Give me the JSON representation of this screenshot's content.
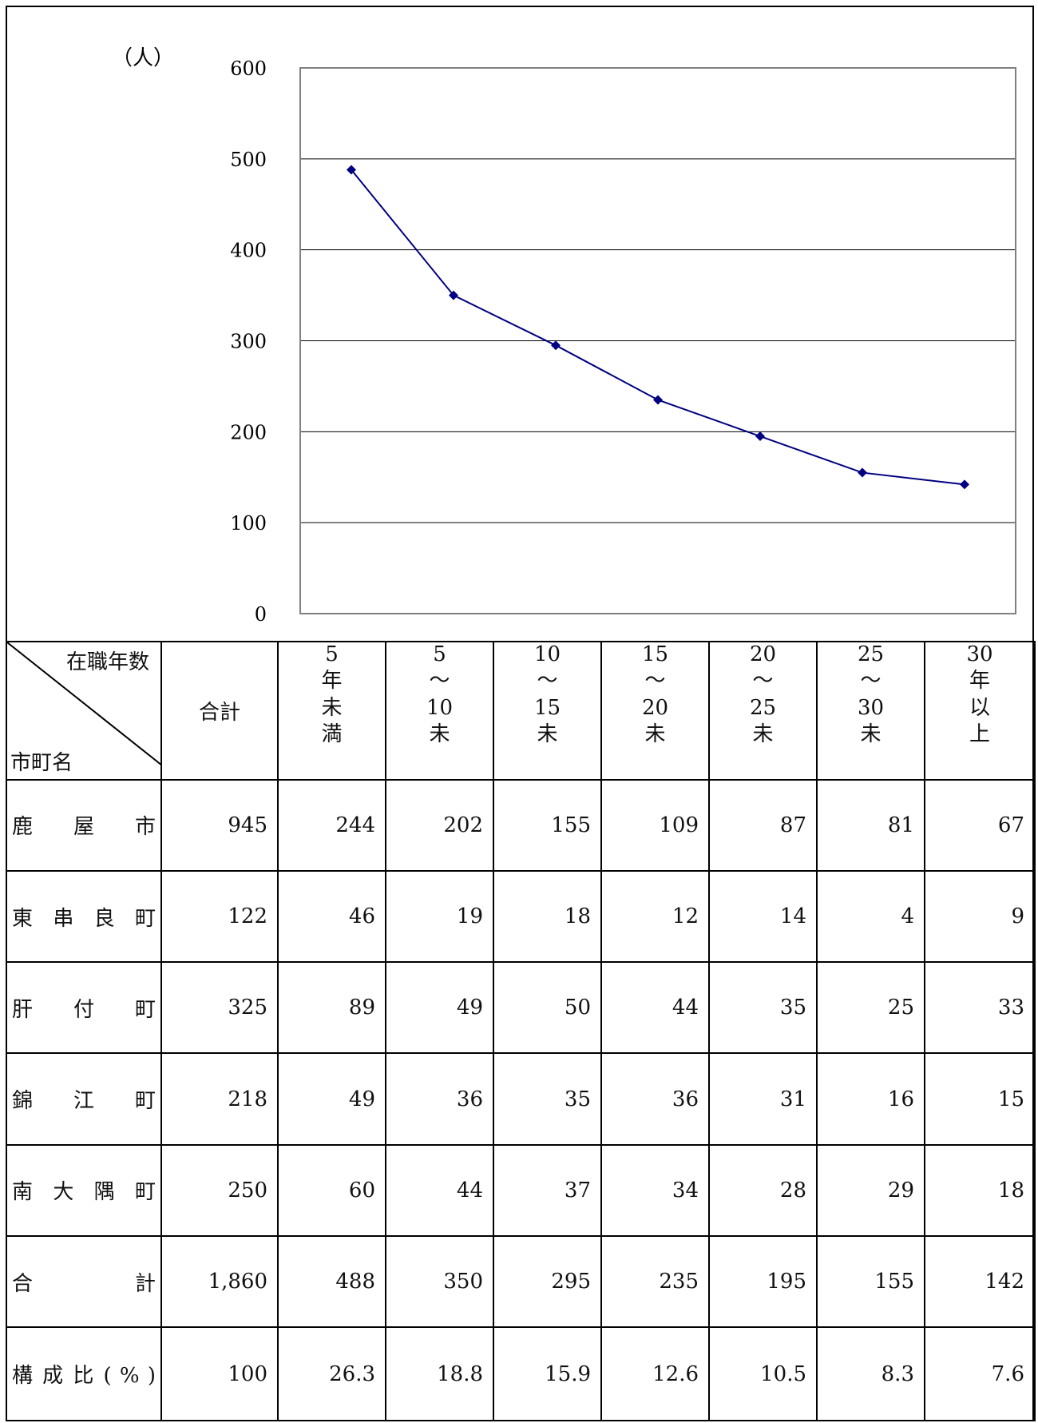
{
  "chart_data": {
    "type": "line",
    "ylabel": "（人）",
    "ylim": [
      0,
      600
    ],
    "yticks": [
      "0",
      "100",
      "200",
      "300",
      "400",
      "500",
      "600"
    ],
    "grid": true,
    "line_color": "#000080",
    "categories": [
      "5年未満",
      "5〜10未",
      "10〜15未",
      "15〜20未",
      "20〜25未",
      "25〜30未",
      "30年以上"
    ],
    "values": [
      488,
      350,
      295,
      235,
      195,
      155,
      142
    ]
  },
  "table": {
    "corner_top": "在職年数",
    "corner_bottom": "市町名",
    "total_header": "合計",
    "col_headers": [
      [
        "5",
        "年",
        "未",
        "満"
      ],
      [
        "5",
        "〜",
        "10",
        "未"
      ],
      [
        "10",
        "〜",
        "15",
        "未"
      ],
      [
        "15",
        "〜",
        "20",
        "未"
      ],
      [
        "20",
        "〜",
        "25",
        "未"
      ],
      [
        "25",
        "〜",
        "30",
        "未"
      ],
      [
        "30",
        "年",
        "以",
        "上"
      ]
    ],
    "rows": [
      {
        "name": [
          "鹿",
          "屋",
          "市"
        ],
        "total": "945",
        "cells": [
          "244",
          "202",
          "155",
          "109",
          "87",
          "81",
          "67"
        ]
      },
      {
        "name": [
          "東",
          "串",
          "良",
          "町"
        ],
        "total": "122",
        "cells": [
          "46",
          "19",
          "18",
          "12",
          "14",
          "4",
          "9"
        ]
      },
      {
        "name": [
          "肝",
          "付",
          "町"
        ],
        "total": "325",
        "cells": [
          "89",
          "49",
          "50",
          "44",
          "35",
          "25",
          "33"
        ]
      },
      {
        "name": [
          "錦",
          "江",
          "町"
        ],
        "total": "218",
        "cells": [
          "49",
          "36",
          "35",
          "36",
          "31",
          "16",
          "15"
        ]
      },
      {
        "name": [
          "南",
          "大",
          "隅",
          "町"
        ],
        "total": "250",
        "cells": [
          "60",
          "44",
          "37",
          "34",
          "28",
          "29",
          "18"
        ]
      },
      {
        "name": [
          "合",
          "計"
        ],
        "total": "1,860",
        "cells": [
          "488",
          "350",
          "295",
          "235",
          "195",
          "155",
          "142"
        ]
      },
      {
        "name": [
          "構",
          "成",
          "比",
          "(",
          "%",
          ")"
        ],
        "total": "100",
        "cells": [
          "26.3",
          "18.8",
          "15.9",
          "12.6",
          "10.5",
          "8.3",
          "7.6"
        ]
      }
    ]
  }
}
